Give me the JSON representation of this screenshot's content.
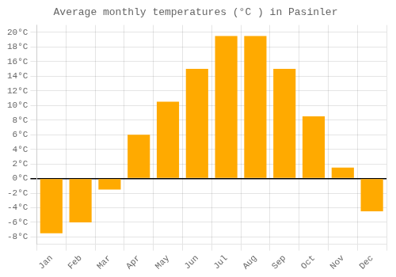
{
  "chart_data": {
    "type": "bar",
    "title": "Average monthly temperatures (°C ) in Pasinler",
    "categories": [
      "Jan",
      "Feb",
      "Mar",
      "Apr",
      "May",
      "Jun",
      "Jul",
      "Aug",
      "Sep",
      "Oct",
      "Nov",
      "Dec"
    ],
    "values": [
      -7.5,
      -6.0,
      -1.5,
      6.0,
      10.5,
      15.0,
      19.5,
      19.5,
      15.0,
      8.5,
      1.5,
      -4.5
    ],
    "color": "#FFAA00",
    "ylim": [
      -9,
      21
    ],
    "yticks": [
      {
        "value": -8,
        "label": "-8°C"
      },
      {
        "value": -6,
        "label": "-6°C"
      },
      {
        "value": -4,
        "label": "-4°C"
      },
      {
        "value": -2,
        "label": "-2°C"
      },
      {
        "value": 0,
        "label": "0°C"
      },
      {
        "value": 2,
        "label": "2°C"
      },
      {
        "value": 4,
        "label": "4°C"
      },
      {
        "value": 6,
        "label": "6°C"
      },
      {
        "value": 8,
        "label": "8°C"
      },
      {
        "value": 10,
        "label": "10°C"
      },
      {
        "value": 12,
        "label": "12°C"
      },
      {
        "value": 14,
        "label": "14°C"
      },
      {
        "value": 16,
        "label": "16°C"
      },
      {
        "value": 18,
        "label": "18°C"
      },
      {
        "value": 20,
        "label": "20°C"
      }
    ],
    "grid": true
  }
}
